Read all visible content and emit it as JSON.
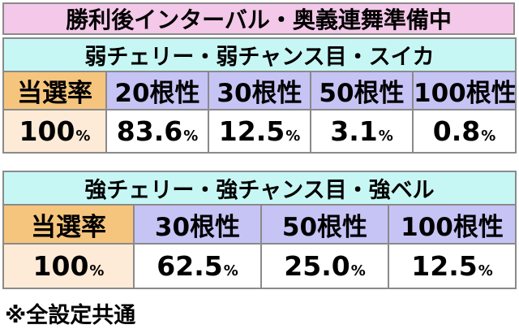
{
  "title": "勝利後インターバル・奥義連舞準備中",
  "table1": {
    "header": "弱チェリー・弱チャンス目・スイカ",
    "row_label": "当選率",
    "columns": [
      "20根性",
      "30根性",
      "50根性",
      "100根性"
    ],
    "rate": {
      "num": "100",
      "unit": "%"
    },
    "values": [
      {
        "num": "83.6",
        "unit": "%"
      },
      {
        "num": "12.5",
        "unit": "%"
      },
      {
        "num": "3.1",
        "unit": "%"
      },
      {
        "num": "0.8",
        "unit": "%"
      }
    ]
  },
  "table2": {
    "header": "強チェリー・強チャンス目・強ベル",
    "row_label": "当選率",
    "columns": [
      "30根性",
      "50根性",
      "100根性"
    ],
    "rate": {
      "num": "100",
      "unit": "%"
    },
    "values": [
      {
        "num": "62.5",
        "unit": "%"
      },
      {
        "num": "25.0",
        "unit": "%"
      },
      {
        "num": "12.5",
        "unit": "%"
      }
    ]
  },
  "note": "※全設定共通",
  "colors": {
    "title_bg": "#f3c8e9",
    "header_bg": "#c7f7f5",
    "rate_label_bg": "#f6c57d",
    "column_header_bg": "#c6c3f5",
    "rate_value_bg": "#fdebd7",
    "border": "#8a8a8a"
  }
}
